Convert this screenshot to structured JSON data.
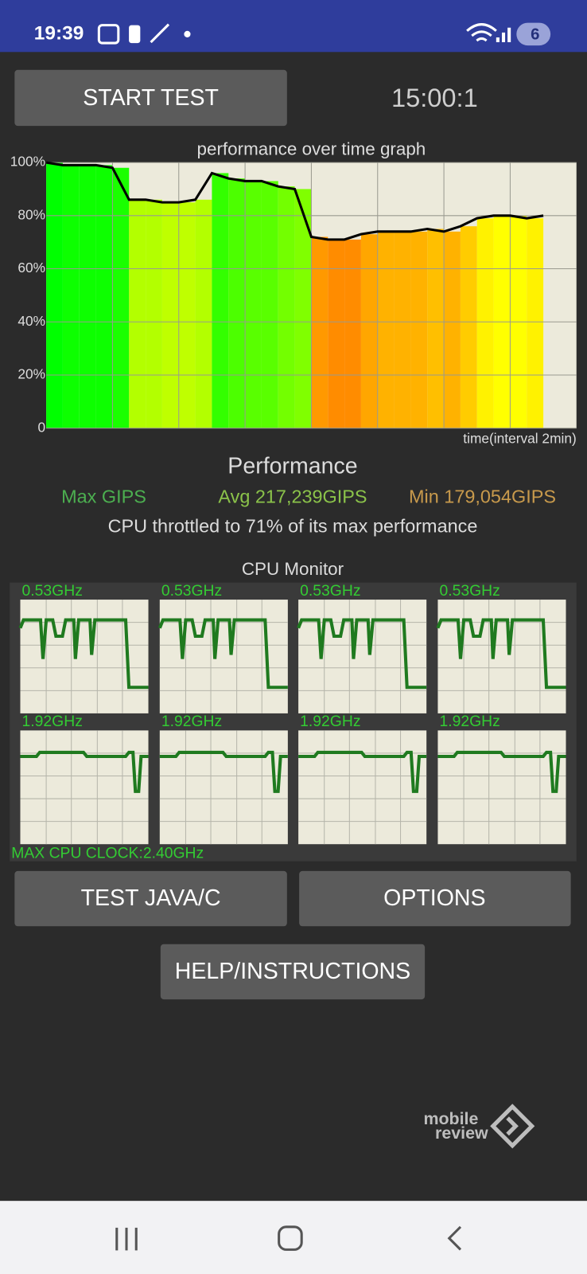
{
  "status_bar": {
    "time": "19:39",
    "notifications": "6"
  },
  "start_button": "START TEST",
  "timer": "15:00:1",
  "chart_data": {
    "type": "area",
    "title": "performance over time graph",
    "x_label": "time(interval 2min)",
    "x": [
      0,
      0.5,
      1,
      1.5,
      2,
      2.5,
      3,
      3.5,
      4,
      4.5,
      5,
      5.5,
      6,
      6.5,
      7,
      7.5,
      8,
      8.5,
      9,
      9.5,
      10,
      10.5,
      11,
      11.5,
      12,
      12.5,
      13,
      13.5,
      14,
      14.5,
      15
    ],
    "values": [
      100,
      99,
      99,
      99,
      98,
      86,
      86,
      85,
      85,
      86,
      96,
      94,
      93,
      93,
      91,
      90,
      72,
      71,
      71,
      73,
      74,
      74,
      74,
      75,
      74,
      76,
      79,
      80,
      80,
      79,
      80
    ],
    "xlim": [
      0,
      16
    ],
    "ylim": [
      0,
      100
    ],
    "yticks": [
      {
        "value": 0,
        "label": "0"
      },
      {
        "value": 20,
        "label": "20%"
      },
      {
        "value": 40,
        "label": "40%"
      },
      {
        "value": 60,
        "label": "60%"
      },
      {
        "value": 80,
        "label": "80%"
      },
      {
        "value": 100,
        "label": "100%"
      }
    ]
  },
  "performance": {
    "heading": "Performance",
    "max": "Max GIPS",
    "avg": "Avg 217,239GIPS",
    "min": "Min 179,054GIPS",
    "throttle": "CPU throttled to 71% of its max performance"
  },
  "cpu_monitor": {
    "title": "CPU Monitor",
    "cores": [
      "0.53GHz",
      "0.53GHz",
      "0.53GHz",
      "0.53GHz",
      "1.92GHz",
      "1.92GHz",
      "1.92GHz",
      "1.92GHz"
    ],
    "max_clock": "MAX CPU CLOCK:2.40GHz"
  },
  "buttons": [
    "TEST JAVA/C",
    "OPTIONS",
    "HELP/INSTRUCTIONS"
  ],
  "watermark": [
    "mobile",
    "review"
  ]
}
